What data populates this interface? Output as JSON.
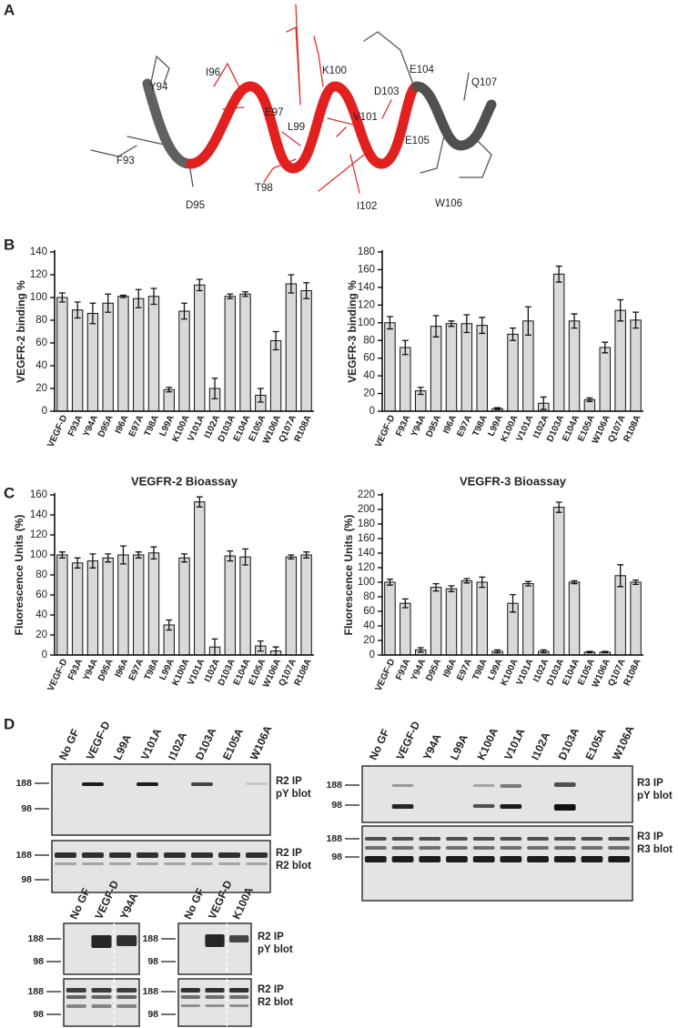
{
  "panel_labels": [
    "A",
    "B",
    "C",
    "D"
  ],
  "structure": {
    "residues": [
      "Y94",
      "I96",
      "K100",
      "E104",
      "Q107",
      "E97",
      "D103",
      "L99",
      "V101",
      "F93",
      "E105",
      "D95",
      "T98",
      "I102",
      "W106"
    ]
  },
  "chart_data": [
    {
      "type": "bar",
      "y_label": "VEGFR-2 binding %",
      "color": "#d9d9d9",
      "categories": [
        "VEGF-D",
        "F93A",
        "Y94A",
        "D95A",
        "I96A",
        "E97A",
        "T98A",
        "L99A",
        "K100A",
        "V101A",
        "I102A",
        "D103A",
        "E104A",
        "E105A",
        "W106A",
        "Q107A",
        "R108A"
      ],
      "values": [
        100,
        89,
        86,
        95,
        101,
        99,
        101,
        19,
        88,
        111,
        20,
        101,
        103,
        14,
        62,
        112,
        106
      ],
      "errors": [
        4,
        7,
        9,
        8,
        1,
        8,
        7,
        2,
        7,
        5,
        9,
        2,
        2,
        6,
        8,
        8,
        7
      ],
      "ylim": [
        0,
        140
      ],
      "yticks": [
        0,
        20,
        40,
        60,
        80,
        100,
        120,
        140
      ]
    },
    {
      "type": "bar",
      "y_label": "VEGFR-3 binding %",
      "color": "#d9d9d9",
      "categories": [
        "VEGF-D",
        "F93A",
        "Y94A",
        "D95A",
        "I96A",
        "E97A",
        "T98A",
        "L99A",
        "K100A",
        "V101A",
        "I102A",
        "D103A",
        "E104A",
        "E105A",
        "W106A",
        "Q107A",
        "R108A"
      ],
      "values": [
        100,
        72,
        23,
        96,
        99,
        99,
        97,
        3,
        87,
        102,
        9,
        155,
        102,
        13,
        72,
        114,
        103
      ],
      "errors": [
        7,
        8,
        4,
        12,
        3,
        10,
        9,
        1,
        7,
        16,
        7,
        9,
        8,
        2,
        6,
        12,
        9
      ],
      "ylim": [
        0,
        180
      ],
      "yticks": [
        0,
        20,
        40,
        60,
        80,
        100,
        120,
        140,
        160,
        180
      ]
    },
    {
      "type": "bar",
      "title": "VEGFR-2 Bioassay",
      "y_label": "Fluorescence Units (%)",
      "color": "#d9d9d9",
      "categories": [
        "VEGF-D",
        "F93A",
        "Y94A",
        "D95A",
        "I96A",
        "E97A",
        "T98A",
        "L99A",
        "K100A",
        "V101A",
        "I102A",
        "D103A",
        "E104A",
        "E105A",
        "W106A",
        "Q107A",
        "R108A"
      ],
      "values": [
        100,
        92,
        94,
        97,
        100,
        100,
        102,
        30,
        97,
        153,
        8,
        99,
        98,
        9,
        4,
        98,
        100
      ],
      "errors": [
        3,
        5,
        7,
        4,
        9,
        3,
        6,
        5,
        4,
        5,
        8,
        5,
        8,
        5,
        4,
        2,
        3
      ],
      "ylim": [
        0,
        160
      ],
      "yticks": [
        0,
        20,
        40,
        60,
        80,
        100,
        120,
        140,
        160
      ]
    },
    {
      "type": "bar",
      "title": "VEGFR-3 Bioassay",
      "y_label": "Fluorescence Units (%)",
      "color": "#d9d9d9",
      "categories": [
        "VEGF-D",
        "F93A",
        "Y94A",
        "D95A",
        "I96A",
        "E97A",
        "T98A",
        "L99A",
        "K100A",
        "V101A",
        "I102A",
        "D103A",
        "E104A",
        "E105A",
        "W106A",
        "Q107A",
        "R108A"
      ],
      "values": [
        100,
        71,
        7,
        93,
        91,
        102,
        100,
        5,
        71,
        98,
        5,
        203,
        100,
        4,
        4,
        109,
        100
      ],
      "errors": [
        4,
        6,
        3,
        5,
        4,
        3,
        7,
        2,
        12,
        3,
        2,
        7,
        2,
        1,
        1,
        15,
        3
      ],
      "ylim": [
        0,
        220
      ],
      "yticks": [
        0,
        20,
        40,
        60,
        80,
        100,
        120,
        140,
        160,
        180,
        200,
        220
      ]
    }
  ],
  "blots": [
    {
      "lanes": [
        "No GF",
        "VEGF-D",
        "L99A",
        "V101A",
        "I102A",
        "D103A",
        "E105A",
        "W106A"
      ],
      "rows": [
        {
          "markers": [
            188,
            98
          ],
          "labels": [
            "R2 IP",
            "pY blot"
          ]
        },
        {
          "markers": [
            188,
            98
          ],
          "labels": [
            "R2 IP",
            "R2 blot"
          ]
        }
      ]
    },
    {
      "lanes": [
        "No GF",
        "VEGF-D",
        "Y94A",
        "L99A",
        "K100A",
        "V101A",
        "I102A",
        "D103A",
        "E105A",
        "W106A"
      ],
      "rows": [
        {
          "markers": [
            188,
            98
          ],
          "labels": [
            "R3 IP",
            "pY blot"
          ]
        },
        {
          "markers": [
            188,
            98
          ],
          "labels": [
            "R3 IP",
            "R3 blot"
          ]
        }
      ]
    },
    {
      "lanes": [
        "No GF",
        "VEGF-D",
        "Y94A"
      ],
      "rows": [
        {
          "markers": [
            188,
            98
          ]
        },
        {
          "markers": [
            188,
            98
          ]
        }
      ]
    },
    {
      "lanes": [
        "No GF",
        "VEGF-D",
        "K100A"
      ],
      "rows": [
        {
          "markers": [
            188,
            98
          ],
          "labels": [
            "R2 IP",
            "pY blot"
          ]
        },
        {
          "markers": [
            188,
            98
          ],
          "labels": [
            "R2 IP",
            "R2 blot"
          ]
        }
      ]
    }
  ]
}
